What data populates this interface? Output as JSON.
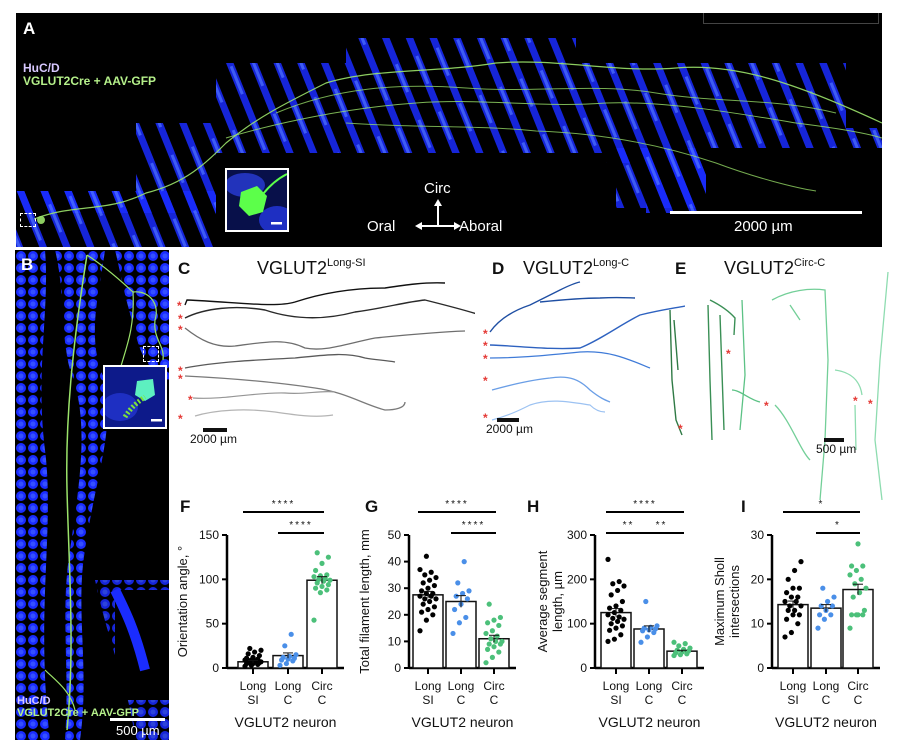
{
  "panels": {
    "A": {
      "label": "A",
      "legend_line1": "HuC/D",
      "legend_line2": "VGLUT2Cre + AAV-GFP",
      "axis_circ": "Circ",
      "axis_oral": "Oral",
      "axis_aboral": "Aboral",
      "scale_label": "2000 µm"
    },
    "B": {
      "label": "B",
      "legend_line1": "HuC/D",
      "legend_line2": "VGLUT2Cre + AAV-GFP",
      "scale_label": "500 µm"
    },
    "C": {
      "label": "C",
      "title_main": "VGLUT2",
      "title_sup": "Long-SI",
      "scale_label": "2000 µm",
      "trace_colors": [
        "#111111",
        "#2a2a2a",
        "#6e6e6e",
        "#5a5a5a",
        "#7a7a7a",
        "#959595",
        "#b4b4b4"
      ]
    },
    "D": {
      "label": "D",
      "title_main": "VGLUT2",
      "title_sup": "Long-C",
      "scale_label": "2000 µm",
      "trace_colors": [
        "#1f4fa3",
        "#2e62c0",
        "#3f7bd8",
        "#6a9ee6",
        "#9cc2f2"
      ]
    },
    "E": {
      "label": "E",
      "title_main": "VGLUT2",
      "title_sup": "Circ-C",
      "scale_label": "500 µm",
      "trace_colors": [
        "#2f7a45",
        "#3a8f55",
        "#5cc285",
        "#73cf98",
        "#8edcb0"
      ]
    },
    "F": {
      "label": "F"
    },
    "G": {
      "label": "G"
    },
    "H": {
      "label": "H"
    },
    "I": {
      "label": "I"
    }
  },
  "colors": {
    "long_si": "#000000",
    "long_c": "#4a8fe8",
    "circ_c": "#4cc07a",
    "marker_red": "#e53935",
    "nucleus_blue": "#1a2cff",
    "gfp_green": "#9be36a"
  },
  "chart_data": [
    {
      "panel": "F",
      "type": "bar",
      "categories": [
        "Long SI",
        "Long C",
        "Circ C"
      ],
      "category_lines": [
        [
          "Long",
          "SI"
        ],
        [
          "Long",
          "C"
        ],
        [
          "Circ",
          "C"
        ]
      ],
      "values": [
        7,
        14,
        99
      ],
      "sem": [
        1.5,
        3,
        4
      ],
      "points": [
        [
          2,
          3,
          4,
          5,
          5,
          6,
          6,
          7,
          7,
          8,
          8,
          9,
          9,
          10,
          11,
          12,
          14,
          16,
          18,
          20,
          22
        ],
        [
          3,
          5,
          8,
          9,
          10,
          11,
          12,
          13,
          15,
          25,
          38
        ],
        [
          54,
          85,
          88,
          90,
          92,
          94,
          96,
          98,
          99,
          100,
          101,
          103,
          104,
          105,
          110,
          118,
          125,
          130
        ]
      ],
      "xlabel": "VGLUT2 neuron",
      "ylabel": "Orientation angle, °",
      "yticks": [
        0,
        50,
        100,
        150
      ],
      "ylim": [
        0,
        150
      ],
      "significance": [
        {
          "from": 0,
          "to": 2,
          "label": "****"
        },
        {
          "from": 1,
          "to": 2,
          "label": "****"
        }
      ]
    },
    {
      "panel": "G",
      "type": "bar",
      "categories": [
        "Long SI",
        "Long C",
        "Circ C"
      ],
      "category_lines": [
        [
          "Long",
          "SI"
        ],
        [
          "Long",
          "C"
        ],
        [
          "Circ",
          "C"
        ]
      ],
      "values": [
        27.5,
        25,
        11
      ],
      "sem": [
        1.3,
        2.2,
        1.3
      ],
      "points": [
        [
          14,
          18,
          20,
          21,
          22,
          23,
          24,
          25,
          26,
          26,
          27,
          27,
          28,
          28,
          29,
          30,
          31,
          32,
          33,
          34,
          35,
          36,
          37,
          42
        ],
        [
          13,
          17,
          19,
          22,
          24,
          26,
          27,
          28,
          29,
          32,
          40
        ],
        [
          2,
          4,
          6,
          7,
          8,
          9,
          9,
          10,
          10,
          11,
          12,
          13,
          14,
          16,
          17,
          18,
          19,
          24
        ]
      ],
      "xlabel": "VGLUT2 neuron",
      "ylabel": "Total filament length, mm",
      "yticks": [
        0,
        10,
        20,
        30,
        40,
        50
      ],
      "ylim": [
        0,
        50
      ],
      "significance": [
        {
          "from": 0,
          "to": 2,
          "label": "****"
        },
        {
          "from": 1,
          "to": 2,
          "label": "****"
        }
      ]
    },
    {
      "panel": "H",
      "type": "bar",
      "categories": [
        "Long SI",
        "Long C",
        "Circ C"
      ],
      "category_lines": [
        [
          "Long",
          "SI"
        ],
        [
          "Long",
          "C"
        ],
        [
          "Circ",
          "C"
        ]
      ],
      "values": [
        125,
        88,
        38
      ],
      "sem": [
        9,
        7,
        2
      ],
      "points": [
        [
          60,
          65,
          75,
          85,
          90,
          95,
          100,
          105,
          110,
          112,
          115,
          120,
          125,
          130,
          135,
          140,
          150,
          165,
          175,
          185,
          190,
          195,
          245
        ],
        [
          58,
          70,
          80,
          84,
          86,
          88,
          90,
          92,
          95,
          150
        ],
        [
          28,
          30,
          32,
          34,
          36,
          38,
          40,
          42,
          45,
          50,
          55,
          58
        ]
      ],
      "xlabel": "VGLUT2 neuron",
      "ylabel": "Average segment length, µm",
      "yticks": [
        0,
        100,
        200,
        300
      ],
      "ylim": [
        0,
        300
      ],
      "significance": [
        {
          "from": 0,
          "to": 2,
          "label": "****"
        },
        {
          "from": 0,
          "to": 1,
          "label": "**"
        },
        {
          "from": 1,
          "to": 2,
          "label": "**"
        }
      ]
    },
    {
      "panel": "I",
      "type": "bar",
      "categories": [
        "Long SI",
        "Long C",
        "Circ C"
      ],
      "category_lines": [
        [
          "Long",
          "SI"
        ],
        [
          "Long",
          "C"
        ],
        [
          "Circ",
          "C"
        ]
      ],
      "values": [
        14.3,
        13.5,
        17.7
      ],
      "sem": [
        0.8,
        0.8,
        1.2
      ],
      "points": [
        [
          7,
          8,
          10,
          11,
          12,
          12,
          13,
          13,
          14,
          14,
          15,
          15,
          16,
          16,
          17,
          18,
          18,
          20,
          22,
          24
        ],
        [
          9,
          11,
          12,
          12,
          13,
          14,
          14,
          15,
          16,
          18
        ],
        [
          9,
          12,
          12,
          12,
          12,
          13,
          16,
          17,
          18,
          19,
          20,
          21,
          22,
          23,
          23,
          28
        ]
      ],
      "xlabel": "VGLUT2 neuron",
      "ylabel": "Maximum Sholl intersections",
      "yticks": [
        0,
        10,
        20,
        30
      ],
      "ylim": [
        0,
        30
      ],
      "significance": [
        {
          "from": 0,
          "to": 2,
          "label": "*"
        },
        {
          "from": 1,
          "to": 2,
          "label": "*"
        }
      ]
    }
  ]
}
